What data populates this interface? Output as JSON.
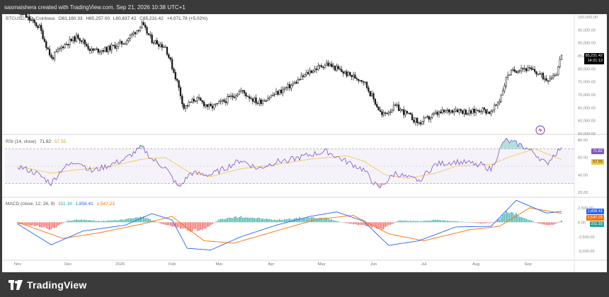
{
  "header": {
    "caption": "sasmaishera created with TradingView.com, Sep 21, 2026 10:38 UTC+1"
  },
  "branding": {
    "logo_text": "TradingView"
  },
  "main_legend": {
    "symbol": "BTCUSD, 1D, Coinbase",
    "o": "O81,160.33",
    "h": "H85,257.00",
    "l": "L80,837.42",
    "c": "C85,231.42",
    "change": "+4,071.78 (+5.02%)"
  },
  "rsi_legend": {
    "label": "RSI (14, close)",
    "v1": "71.82",
    "v2": "57.55"
  },
  "macd_legend": {
    "label": "MACD (close, 12, 26, 9)",
    "v1": "311.18",
    "v2": "1,858.41",
    "v3": "1,547.23"
  },
  "price_tags": {
    "last_price": "85,231.42",
    "countdown": "14:21:13"
  },
  "rsi_tags": {
    "rsi": "71.82",
    "ma": "57.55"
  },
  "macd_tags": {
    "macd": "1,858.41",
    "signal": "1,547.23",
    "hist": "311.18"
  },
  "colors": {
    "candle": "#1a1a1a",
    "rsi_line": "#7e57c2",
    "rsi_ma": "#f5c542",
    "rsi_band": "#7e57c2",
    "macd_line": "#2962ff",
    "signal_line": "#ff6d00",
    "hist_up": "#26a69a",
    "hist_down": "#ef5350",
    "last_price_bg": "#000000"
  },
  "chart_data": [
    {
      "type": "candlestick",
      "title": "BTCUSD, 1D, Coinbase",
      "x_tick_labels": [
        "Nov",
        "Dec",
        "2026",
        "Feb",
        "Mar",
        "Apr",
        "May",
        "Jun",
        "Jul",
        "Aug",
        "Sep"
      ],
      "y_tick_labels": [
        "100,000.00",
        "95,000.00",
        "90,000.00",
        "85,000.00",
        "80,000.00",
        "75,000.00",
        "70,000.00",
        "65,000.00",
        "60,000.00",
        "55,000.00"
      ],
      "ylim": [
        55000,
        100000
      ],
      "price_waypoints": [
        {
          "date": "Oct 26",
          "close": 104000
        },
        {
          "date": "Nov 6",
          "close": 100000
        },
        {
          "date": "Nov 14",
          "close": 96000
        },
        {
          "date": "Nov 21",
          "close": 84000
        },
        {
          "date": "Nov 28",
          "close": 89000
        },
        {
          "date": "Dec 7",
          "close": 92500
        },
        {
          "date": "Dec 15",
          "close": 87000
        },
        {
          "date": "Dec 24",
          "close": 87500
        },
        {
          "date": "Jan 4",
          "close": 90500
        },
        {
          "date": "Jan 14",
          "close": 97000
        },
        {
          "date": "Jan 20",
          "close": 91000
        },
        {
          "date": "Jan 28",
          "close": 88500
        },
        {
          "date": "Feb 4",
          "close": 75000
        },
        {
          "date": "Feb 8",
          "close": 65000
        },
        {
          "date": "Feb 15",
          "close": 68500
        },
        {
          "date": "Feb 24",
          "close": 65000
        },
        {
          "date": "Mar 4",
          "close": 67500
        },
        {
          "date": "Mar 14",
          "close": 71500
        },
        {
          "date": "Mar 24",
          "close": 67000
        },
        {
          "date": "Apr 4",
          "close": 70500
        },
        {
          "date": "Apr 14",
          "close": 74000
        },
        {
          "date": "Apr 24",
          "close": 79000
        },
        {
          "date": "May 4",
          "close": 82000
        },
        {
          "date": "May 16",
          "close": 78000
        },
        {
          "date": "May 26",
          "close": 75500
        },
        {
          "date": "Jun 2",
          "close": 67000
        },
        {
          "date": "Jun 6",
          "close": 62000
        },
        {
          "date": "Jun 14",
          "close": 65500
        },
        {
          "date": "Jun 22",
          "close": 62000
        },
        {
          "date": "Jun 28",
          "close": 59000
        },
        {
          "date": "Jul 8",
          "close": 62500
        },
        {
          "date": "Jul 20",
          "close": 64500
        },
        {
          "date": "Jul 28",
          "close": 63000
        },
        {
          "date": "Aug 4",
          "close": 64500
        },
        {
          "date": "Aug 10",
          "close": 63000
        },
        {
          "date": "Aug 15",
          "close": 68000
        },
        {
          "date": "Aug 20",
          "close": 78000
        },
        {
          "date": "Aug 28",
          "close": 80500
        },
        {
          "date": "Sep 5",
          "close": 79000
        },
        {
          "date": "Sep 12",
          "close": 76000
        },
        {
          "date": "Sep 18",
          "close": 78500
        },
        {
          "date": "Sep 21",
          "close": 85231.42
        }
      ]
    },
    {
      "type": "line",
      "title": "RSI (14, close)",
      "y_tick_labels": [
        "80.00",
        "60.00",
        "40.00",
        "20.00"
      ],
      "ylim": [
        15,
        85
      ],
      "bands": [
        70,
        30
      ],
      "midline": 50,
      "series": [
        {
          "name": "RSI",
          "points": [
            {
              "date": "Nov 1",
              "value": 50
            },
            {
              "date": "Nov 12",
              "value": 42
            },
            {
              "date": "Nov 21",
              "value": 30
            },
            {
              "date": "Nov 28",
              "value": 48
            },
            {
              "date": "Dec 7",
              "value": 56
            },
            {
              "date": "Dec 15",
              "value": 44
            },
            {
              "date": "Dec 24",
              "value": 50
            },
            {
              "date": "Jan 4",
              "value": 58
            },
            {
              "date": "Jan 14",
              "value": 72
            },
            {
              "date": "Jan 20",
              "value": 58
            },
            {
              "date": "Jan 28",
              "value": 48
            },
            {
              "date": "Feb 5",
              "value": 25
            },
            {
              "date": "Feb 12",
              "value": 42
            },
            {
              "date": "Feb 24",
              "value": 40
            },
            {
              "date": "Mar 4",
              "value": 47
            },
            {
              "date": "Mar 14",
              "value": 57
            },
            {
              "date": "Mar 24",
              "value": 47
            },
            {
              "date": "Apr 4",
              "value": 55
            },
            {
              "date": "Apr 14",
              "value": 58
            },
            {
              "date": "Apr 24",
              "value": 63
            },
            {
              "date": "May 4",
              "value": 67
            },
            {
              "date": "May 16",
              "value": 55
            },
            {
              "date": "May 26",
              "value": 46
            },
            {
              "date": "Jun 4",
              "value": 24
            },
            {
              "date": "Jun 14",
              "value": 42
            },
            {
              "date": "Jun 22",
              "value": 36
            },
            {
              "date": "Jun 28",
              "value": 34
            },
            {
              "date": "Jul 8",
              "value": 52
            },
            {
              "date": "Jul 20",
              "value": 55
            },
            {
              "date": "Aug 4",
              "value": 52
            },
            {
              "date": "Aug 10",
              "value": 46
            },
            {
              "date": "Aug 18",
              "value": 80
            },
            {
              "date": "Aug 28",
              "value": 74
            },
            {
              "date": "Sep 5",
              "value": 65
            },
            {
              "date": "Sep 12",
              "value": 52
            },
            {
              "date": "Sep 16",
              "value": 62
            },
            {
              "date": "Sep 21",
              "value": 71.82
            }
          ]
        },
        {
          "name": "RSI-based MA",
          "points": [
            {
              "date": "Nov 1",
              "value": 50
            },
            {
              "date": "Nov 21",
              "value": 42
            },
            {
              "date": "Dec 7",
              "value": 46
            },
            {
              "date": "Dec 24",
              "value": 49
            },
            {
              "date": "Jan 14",
              "value": 58
            },
            {
              "date": "Jan 28",
              "value": 60
            },
            {
              "date": "Feb 12",
              "value": 42
            },
            {
              "date": "Feb 24",
              "value": 38
            },
            {
              "date": "Mar 14",
              "value": 47
            },
            {
              "date": "Apr 4",
              "value": 52
            },
            {
              "date": "Apr 24",
              "value": 58
            },
            {
              "date": "May 16",
              "value": 62
            },
            {
              "date": "May 26",
              "value": 56
            },
            {
              "date": "Jun 8",
              "value": 40
            },
            {
              "date": "Jun 22",
              "value": 36
            },
            {
              "date": "Jul 8",
              "value": 42
            },
            {
              "date": "Jul 20",
              "value": 50
            },
            {
              "date": "Aug 10",
              "value": 52
            },
            {
              "date": "Aug 20",
              "value": 60
            },
            {
              "date": "Sep 5",
              "value": 70
            },
            {
              "date": "Sep 21",
              "value": 57.55
            }
          ]
        }
      ]
    },
    {
      "type": "bar",
      "title": "MACD (close, 12, 26, 9)",
      "y_tick_labels": [
        "2,500.00",
        "0.00",
        "-2,500.00",
        "-5,000.00"
      ],
      "ylim": [
        -6200,
        4200
      ],
      "series": [
        {
          "name": "Histogram",
          "points": [
            {
              "date": "Nov 1",
              "value": -300
            },
            {
              "date": "Nov 12",
              "value": -600
            },
            {
              "date": "Nov 21",
              "value": -1200
            },
            {
              "date": "Dec 1",
              "value": 300
            },
            {
              "date": "Dec 10",
              "value": 500
            },
            {
              "date": "Dec 20",
              "value": 200
            },
            {
              "date": "Jan 4",
              "value": 500
            },
            {
              "date": "Jan 14",
              "value": 1000
            },
            {
              "date": "Jan 25",
              "value": -200
            },
            {
              "date": "Feb 5",
              "value": -900
            },
            {
              "date": "Feb 12",
              "value": -1500
            },
            {
              "date": "Feb 20",
              "value": -1200
            },
            {
              "date": "Mar 1",
              "value": 500
            },
            {
              "date": "Mar 14",
              "value": 1000
            },
            {
              "date": "Mar 24",
              "value": 700
            },
            {
              "date": "Apr 4",
              "value": 400
            },
            {
              "date": "Apr 20",
              "value": 800
            },
            {
              "date": "May 4",
              "value": 700
            },
            {
              "date": "May 16",
              "value": -200
            },
            {
              "date": "May 28",
              "value": -600
            },
            {
              "date": "Jun 6",
              "value": -1200
            },
            {
              "date": "Jun 16",
              "value": 300
            },
            {
              "date": "Jun 28",
              "value": 200
            },
            {
              "date": "Jul 8",
              "value": 400
            },
            {
              "date": "Jul 20",
              "value": 200
            },
            {
              "date": "Aug 4",
              "value": -200
            },
            {
              "date": "Aug 12",
              "value": -100
            },
            {
              "date": "Aug 20",
              "value": 1900
            },
            {
              "date": "Aug 28",
              "value": 1000
            },
            {
              "date": "Sep 8",
              "value": -300
            },
            {
              "date": "Sep 16",
              "value": -500
            },
            {
              "date": "Sep 21",
              "value": 311.18
            }
          ]
        },
        {
          "name": "MACD",
          "points": [
            {
              "date": "Nov 1",
              "value": -300
            },
            {
              "date": "Nov 21",
              "value": -3900
            },
            {
              "date": "Dec 10",
              "value": -1500
            },
            {
              "date": "Jan 4",
              "value": -500
            },
            {
              "date": "Jan 20",
              "value": 1500
            },
            {
              "date": "Feb 1",
              "value": 400
            },
            {
              "date": "Feb 10",
              "value": -4500
            },
            {
              "date": "Feb 24",
              "value": -4800
            },
            {
              "date": "Mar 14",
              "value": -2500
            },
            {
              "date": "Apr 4",
              "value": -500
            },
            {
              "date": "Apr 24",
              "value": 1000
            },
            {
              "date": "May 10",
              "value": 1800
            },
            {
              "date": "May 26",
              "value": 200
            },
            {
              "date": "Jun 10",
              "value": -4000
            },
            {
              "date": "Jun 28",
              "value": -3200
            },
            {
              "date": "Jul 20",
              "value": -800
            },
            {
              "date": "Aug 10",
              "value": -700
            },
            {
              "date": "Aug 25",
              "value": 3800
            },
            {
              "date": "Sep 12",
              "value": 1600
            },
            {
              "date": "Sep 21",
              "value": 1858.41
            }
          ]
        },
        {
          "name": "Signal",
          "points": [
            {
              "date": "Nov 1",
              "value": 0
            },
            {
              "date": "Nov 28",
              "value": -2800
            },
            {
              "date": "Dec 20",
              "value": -1800
            },
            {
              "date": "Jan 14",
              "value": -300
            },
            {
              "date": "Feb 1",
              "value": 1000
            },
            {
              "date": "Feb 20",
              "value": -3200
            },
            {
              "date": "Mar 10",
              "value": -3600
            },
            {
              "date": "Apr 4",
              "value": -1500
            },
            {
              "date": "Apr 28",
              "value": 500
            },
            {
              "date": "May 20",
              "value": 1200
            },
            {
              "date": "Jun 10",
              "value": -2000
            },
            {
              "date": "Jul 1",
              "value": -3200
            },
            {
              "date": "Jul 28",
              "value": -1300
            },
            {
              "date": "Aug 15",
              "value": -700
            },
            {
              "date": "Sep 2",
              "value": 2500
            },
            {
              "date": "Sep 21",
              "value": 1547.23
            }
          ]
        }
      ]
    }
  ]
}
